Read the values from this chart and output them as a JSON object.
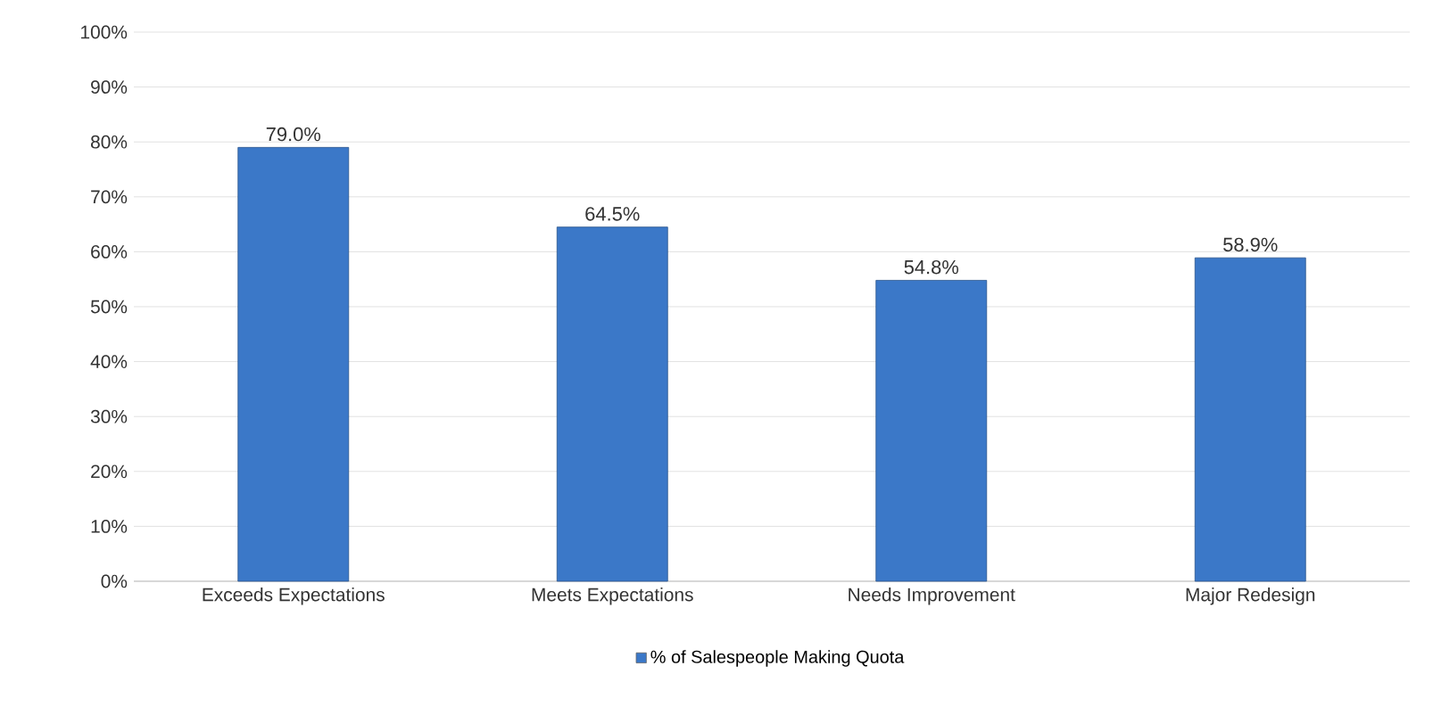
{
  "chart_data": {
    "type": "bar",
    "categories": [
      "Exceeds Expectations",
      "Meets Expectations",
      "Needs Improvement",
      "Major Redesign"
    ],
    "series": [
      {
        "name": "% of Salespeople Making Quota",
        "color": "#3b78c8",
        "values": [
          79.0,
          64.5,
          54.8,
          58.9
        ]
      }
    ],
    "value_labels": [
      "79.0%",
      "64.5%",
      "54.8%",
      "58.9%"
    ],
    "ylim": [
      0,
      100
    ],
    "yticks": [
      {
        "value": 0,
        "label": "0%"
      },
      {
        "value": 10,
        "label": "10%"
      },
      {
        "value": 20,
        "label": "20%"
      },
      {
        "value": 30,
        "label": "30%"
      },
      {
        "value": 40,
        "label": "40%"
      },
      {
        "value": 50,
        "label": "50%"
      },
      {
        "value": 60,
        "label": "60%"
      },
      {
        "value": 70,
        "label": "70%"
      },
      {
        "value": 80,
        "label": "80%"
      },
      {
        "value": 90,
        "label": "90%"
      },
      {
        "value": 100,
        "label": "100%"
      }
    ],
    "grid": "y",
    "legend": "bottom"
  }
}
